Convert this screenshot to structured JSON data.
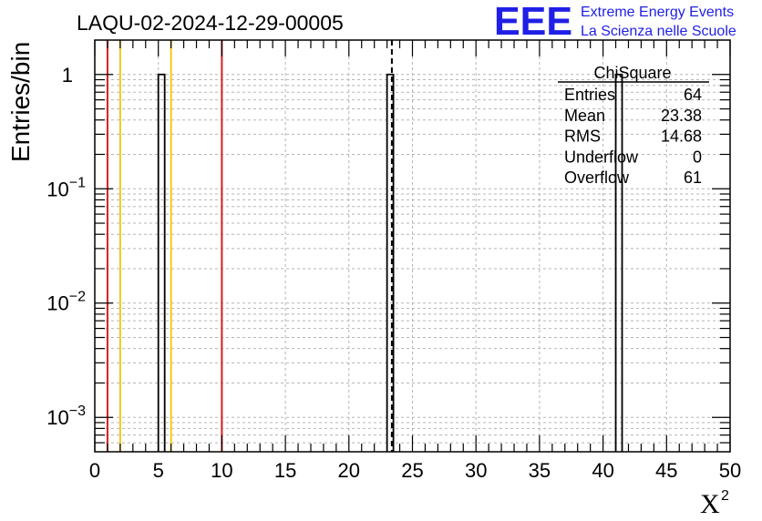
{
  "chart_data": {
    "type": "bar",
    "title": "LAQU-02-2024-12-29-00005",
    "xlabel": "X",
    "xlabel_superscript": "2",
    "ylabel": "Entries/bin",
    "xlim": [
      0,
      50
    ],
    "ylim": [
      0.0005,
      2
    ],
    "yscale": "log",
    "grid": true,
    "x_ticks": [
      0,
      5,
      10,
      15,
      20,
      25,
      30,
      35,
      40,
      45,
      50
    ],
    "x_tick_labels": [
      "0",
      "5",
      "10",
      "15",
      "20",
      "25",
      "30",
      "35",
      "40",
      "45",
      "50"
    ],
    "y_ticks": [
      {
        "value": 0.001,
        "base": "10",
        "exp": "−3"
      },
      {
        "value": 0.01,
        "base": "10",
        "exp": "−2"
      },
      {
        "value": 0.1,
        "base": "10",
        "exp": "−1"
      },
      {
        "value": 1,
        "base": "1",
        "exp": ""
      }
    ],
    "bins": [
      {
        "x0": 5.0,
        "x1": 5.5,
        "value": 1
      },
      {
        "x0": 23.0,
        "x1": 23.5,
        "value": 1
      },
      {
        "x0": 41.0,
        "x1": 41.5,
        "value": 1
      }
    ],
    "reference_lines": [
      {
        "x": 1,
        "color": "#d62020",
        "style": "solid"
      },
      {
        "x": 2,
        "color": "#f2c81c",
        "style": "solid"
      },
      {
        "x": 6,
        "color": "#f2c81c",
        "style": "solid"
      },
      {
        "x": 10,
        "color": "#d62020",
        "style": "solid"
      },
      {
        "x": 23.38,
        "color": "#000000",
        "style": "dashed"
      }
    ],
    "stats": {
      "title": "ChiSquare",
      "rows": [
        {
          "label": "Entries",
          "value": "64"
        },
        {
          "label": "Mean",
          "value": "23.38"
        },
        {
          "label": "RMS",
          "value": "14.68"
        },
        {
          "label": "Underflow",
          "value": "0"
        },
        {
          "label": "Overflow",
          "value": "61"
        }
      ]
    }
  },
  "branding": {
    "logo": "EEE",
    "line1": "Extreme Energy Events",
    "line2": "La Scienza nelle Scuole",
    "color": "#1f1fe6"
  }
}
